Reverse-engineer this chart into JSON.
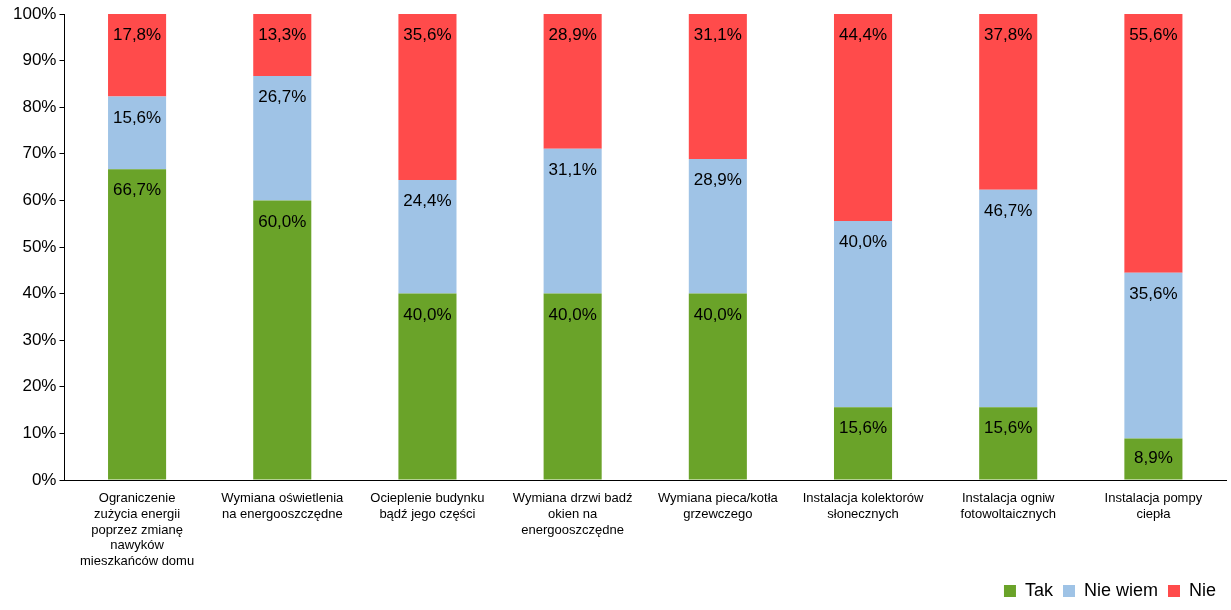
{
  "chart_data": {
    "type": "bar",
    "stacked": true,
    "categories": [
      "Ograniczenie zużycia energii poprzez zmianę nawyków mieszkańców domu",
      "Wymiana oświetlenia na energooszczędne",
      "Ocieplenie budynku bądź jego części",
      "Wymiana drzwi badź okien na energooszczędne",
      "Wymiana pieca/kotła grzewczego",
      "Instalacja kolektorów słonecznych",
      "Instalacja ogniw fotowoltaicznych",
      "Instalacja pompy ciepła"
    ],
    "series": [
      {
        "name": "Tak",
        "color": "#6aa329",
        "values": [
          66.7,
          60.0,
          40.0,
          40.0,
          40.0,
          15.6,
          15.6,
          8.9
        ],
        "value_labels": [
          "66,7%",
          "60,0%",
          "40,0%",
          "40,0%",
          "40,0%",
          "15,6%",
          "15,6%",
          "8,9%"
        ]
      },
      {
        "name": "Nie wiem",
        "color": "#9fc3e6",
        "values": [
          15.6,
          26.7,
          24.4,
          31.1,
          28.9,
          40.0,
          46.7,
          35.6
        ],
        "value_labels": [
          "15,6%",
          "26,7%",
          "24,4%",
          "31,1%",
          "28,9%",
          "40,0%",
          "46,7%",
          "35,6%"
        ]
      },
      {
        "name": "Nie",
        "color": "#ff4b4b",
        "values": [
          17.8,
          13.3,
          35.6,
          28.9,
          31.1,
          44.4,
          37.8,
          55.6
        ],
        "value_labels": [
          "17,8%",
          "13,3%",
          "35,6%",
          "28,9%",
          "31,1%",
          "44,4%",
          "37,8%",
          "55,6%"
        ]
      }
    ],
    "ylim": [
      0,
      100
    ],
    "yticks": [
      {
        "value": 0,
        "label": "0%"
      },
      {
        "value": 10,
        "label": "10%"
      },
      {
        "value": 20,
        "label": "20%"
      },
      {
        "value": 30,
        "label": "30%"
      },
      {
        "value": 40,
        "label": "40%"
      },
      {
        "value": 50,
        "label": "50%"
      },
      {
        "value": 60,
        "label": "60%"
      },
      {
        "value": 70,
        "label": "70%"
      },
      {
        "value": 80,
        "label": "80%"
      },
      {
        "value": 90,
        "label": "90%"
      },
      {
        "value": 100,
        "label": "100%"
      }
    ],
    "grid": false,
    "legend": "bottom right"
  }
}
